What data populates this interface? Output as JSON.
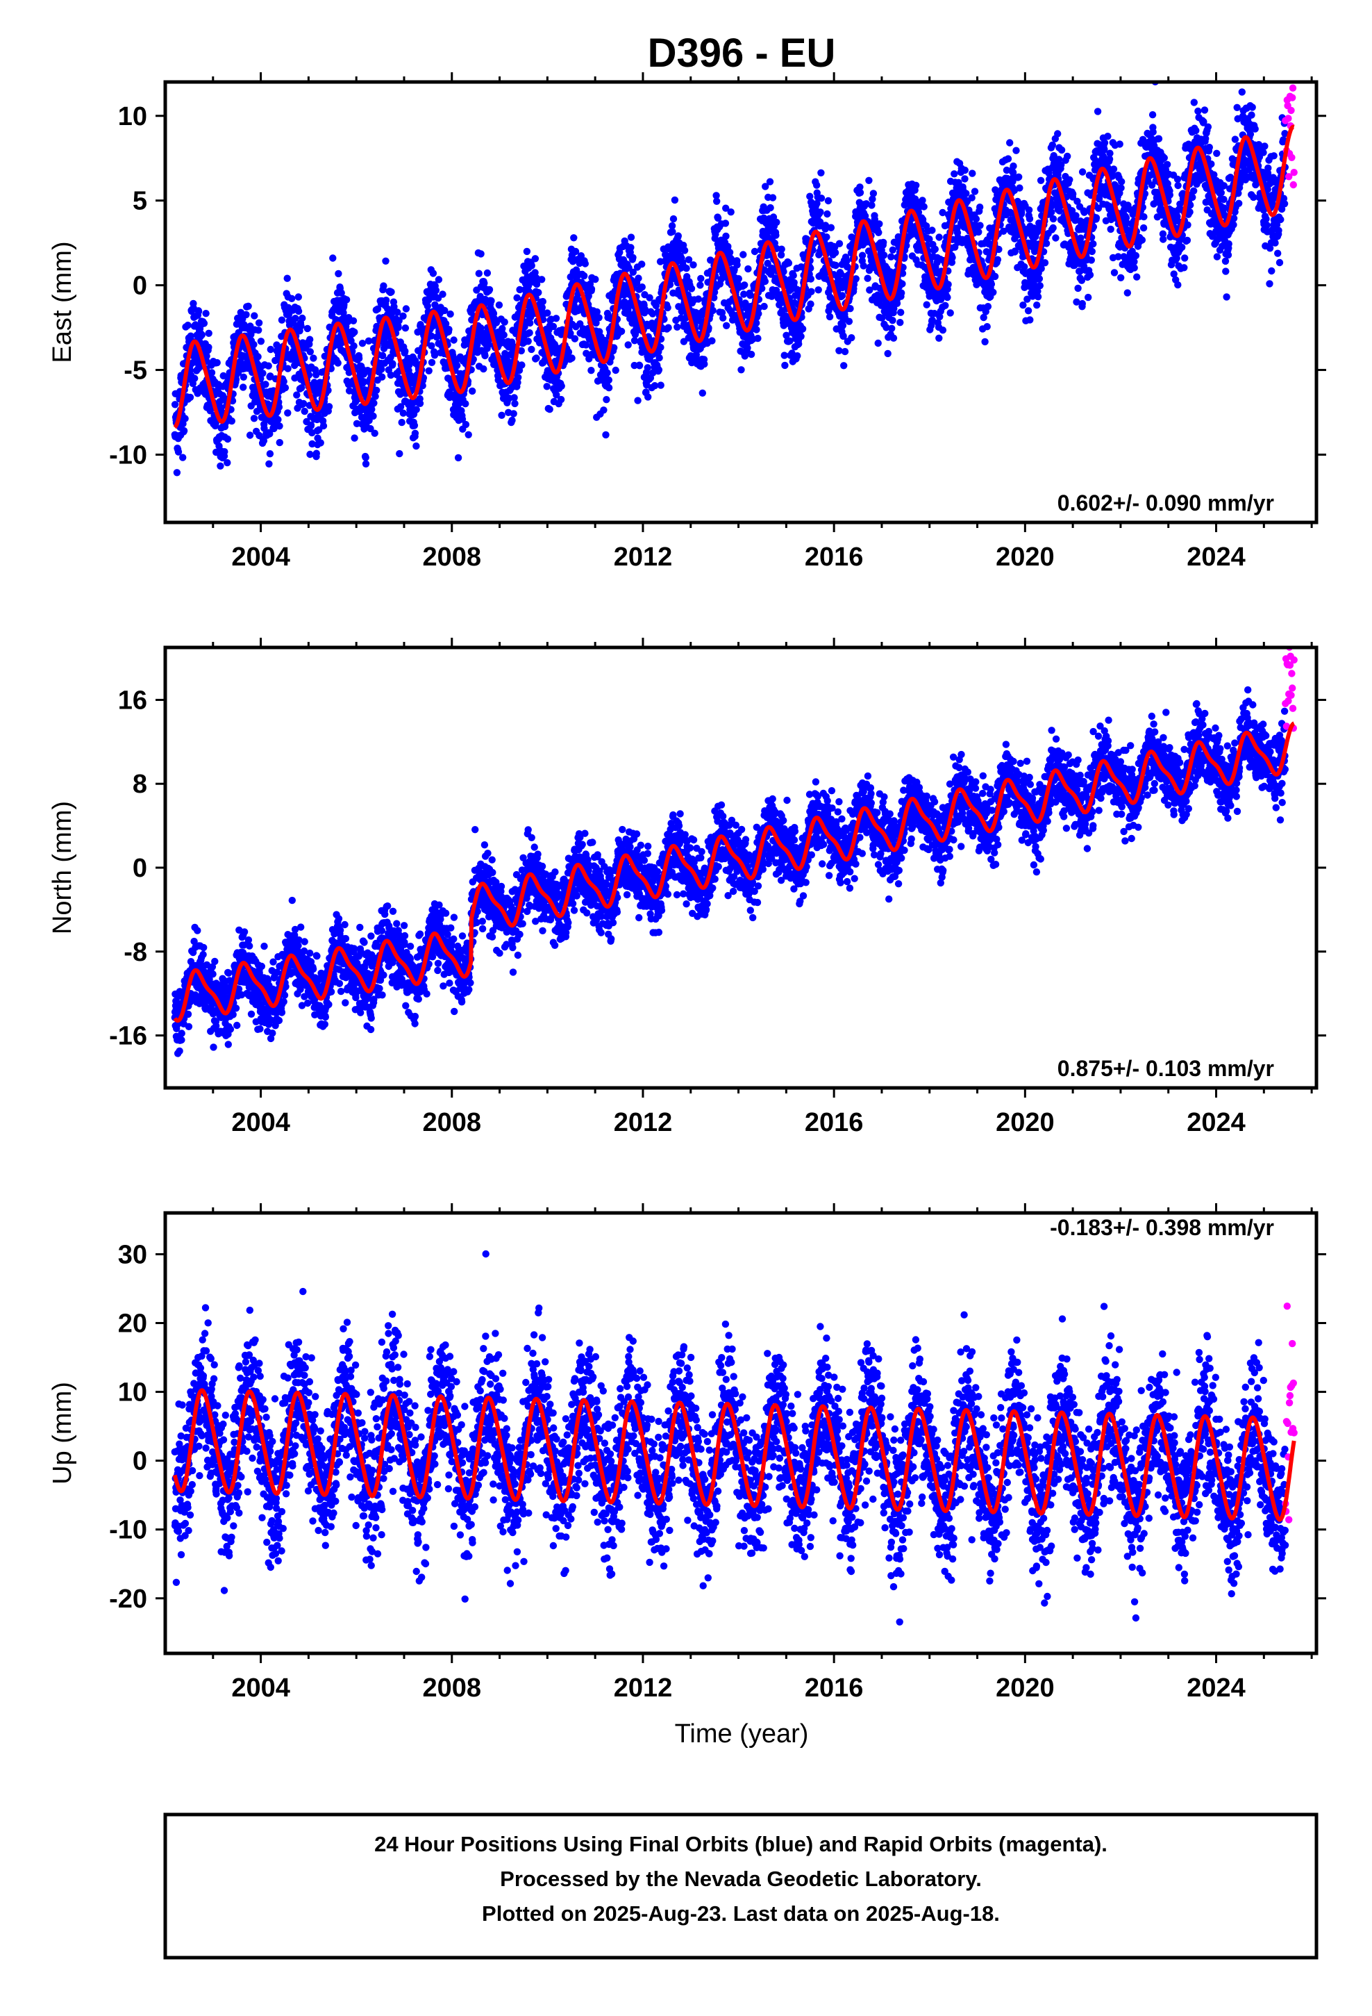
{
  "chart_data": {
    "type": "scatter",
    "title": "D396 - EU",
    "xlabel": "Time (year)",
    "xlim": [
      2002.0,
      2026.1
    ],
    "x_ticks": [
      "2004",
      "2008",
      "2012",
      "2016",
      "2020",
      "2024"
    ],
    "colors": {
      "final": "#0000ff",
      "rapid": "#ff00ff",
      "model": "#ff0000"
    },
    "panels": [
      {
        "ylabel": "East (mm)",
        "ylim": [
          -14,
          12
        ],
        "y_ticks": [
          "10",
          "5",
          "0",
          "-5",
          "-10"
        ],
        "rate_text": "0.602+/- 0.090 mm/yr",
        "model": {
          "intercept": -6.0,
          "step_year": 2008.5,
          "step_mm": 0.0,
          "slope_early": 0.35,
          "slope_late": 0.62,
          "annual_amp": 2.4,
          "annual_phase": 0.4,
          "semi_amp": 0.3
        },
        "scatter_sd": 1.4,
        "series": [
          {
            "name": "Final Orbits",
            "x_range": [
              2002.2,
              2025.45
            ],
            "color": "#0000ff"
          },
          {
            "name": "Rapid Orbits",
            "x_range": [
              2025.45,
              2025.63
            ],
            "color": "#ff00ff"
          }
        ]
      },
      {
        "ylabel": "North (mm)",
        "ylim": [
          -21,
          21
        ],
        "y_ticks": [
          "16",
          "8",
          "0",
          "-8",
          "-16"
        ],
        "rate_text": "0.875+/- 0.103 mm/yr",
        "model": {
          "intercept": -12.5,
          "step_year": 2008.4,
          "step_mm": 4.0,
          "slope_early": 0.7,
          "slope_late": 0.9,
          "annual_amp": 2.0,
          "annual_phase": 0.45,
          "semi_amp": 0.6
        },
        "scatter_sd": 1.6,
        "series": [
          {
            "name": "Final Orbits",
            "x_range": [
              2002.2,
              2025.45
            ],
            "color": "#0000ff"
          },
          {
            "name": "Rapid Orbits",
            "x_range": [
              2025.45,
              2025.63
            ],
            "color": "#ff00ff"
          }
        ]
      },
      {
        "ylabel": "Up (mm)",
        "ylim": [
          -28,
          36
        ],
        "y_ticks": [
          "30",
          "20",
          "10",
          "0",
          "-10",
          "-20"
        ],
        "rate_text": "-0.183+/- 0.398 mm/yr",
        "model": {
          "intercept": 3.0,
          "step_year": 2008.5,
          "step_mm": 0.0,
          "slope_early": -0.18,
          "slope_late": -0.18,
          "annual_amp": 7.2,
          "annual_phase": 0.55,
          "semi_amp": 0.8
        },
        "scatter_sd": 5.0,
        "series": [
          {
            "name": "Final Orbits",
            "x_range": [
              2002.2,
              2025.45
            ],
            "color": "#0000ff"
          },
          {
            "name": "Rapid Orbits",
            "x_range": [
              2025.45,
              2025.63
            ],
            "color": "#ff00ff"
          }
        ]
      }
    ]
  },
  "caption": {
    "line1": "24 Hour Positions Using Final Orbits (blue) and Rapid Orbits (magenta).",
    "line2": "Processed by the Nevada Geodetic Laboratory.",
    "line3": "Plotted on 2025-Aug-23. Last data on 2025-Aug-18."
  }
}
